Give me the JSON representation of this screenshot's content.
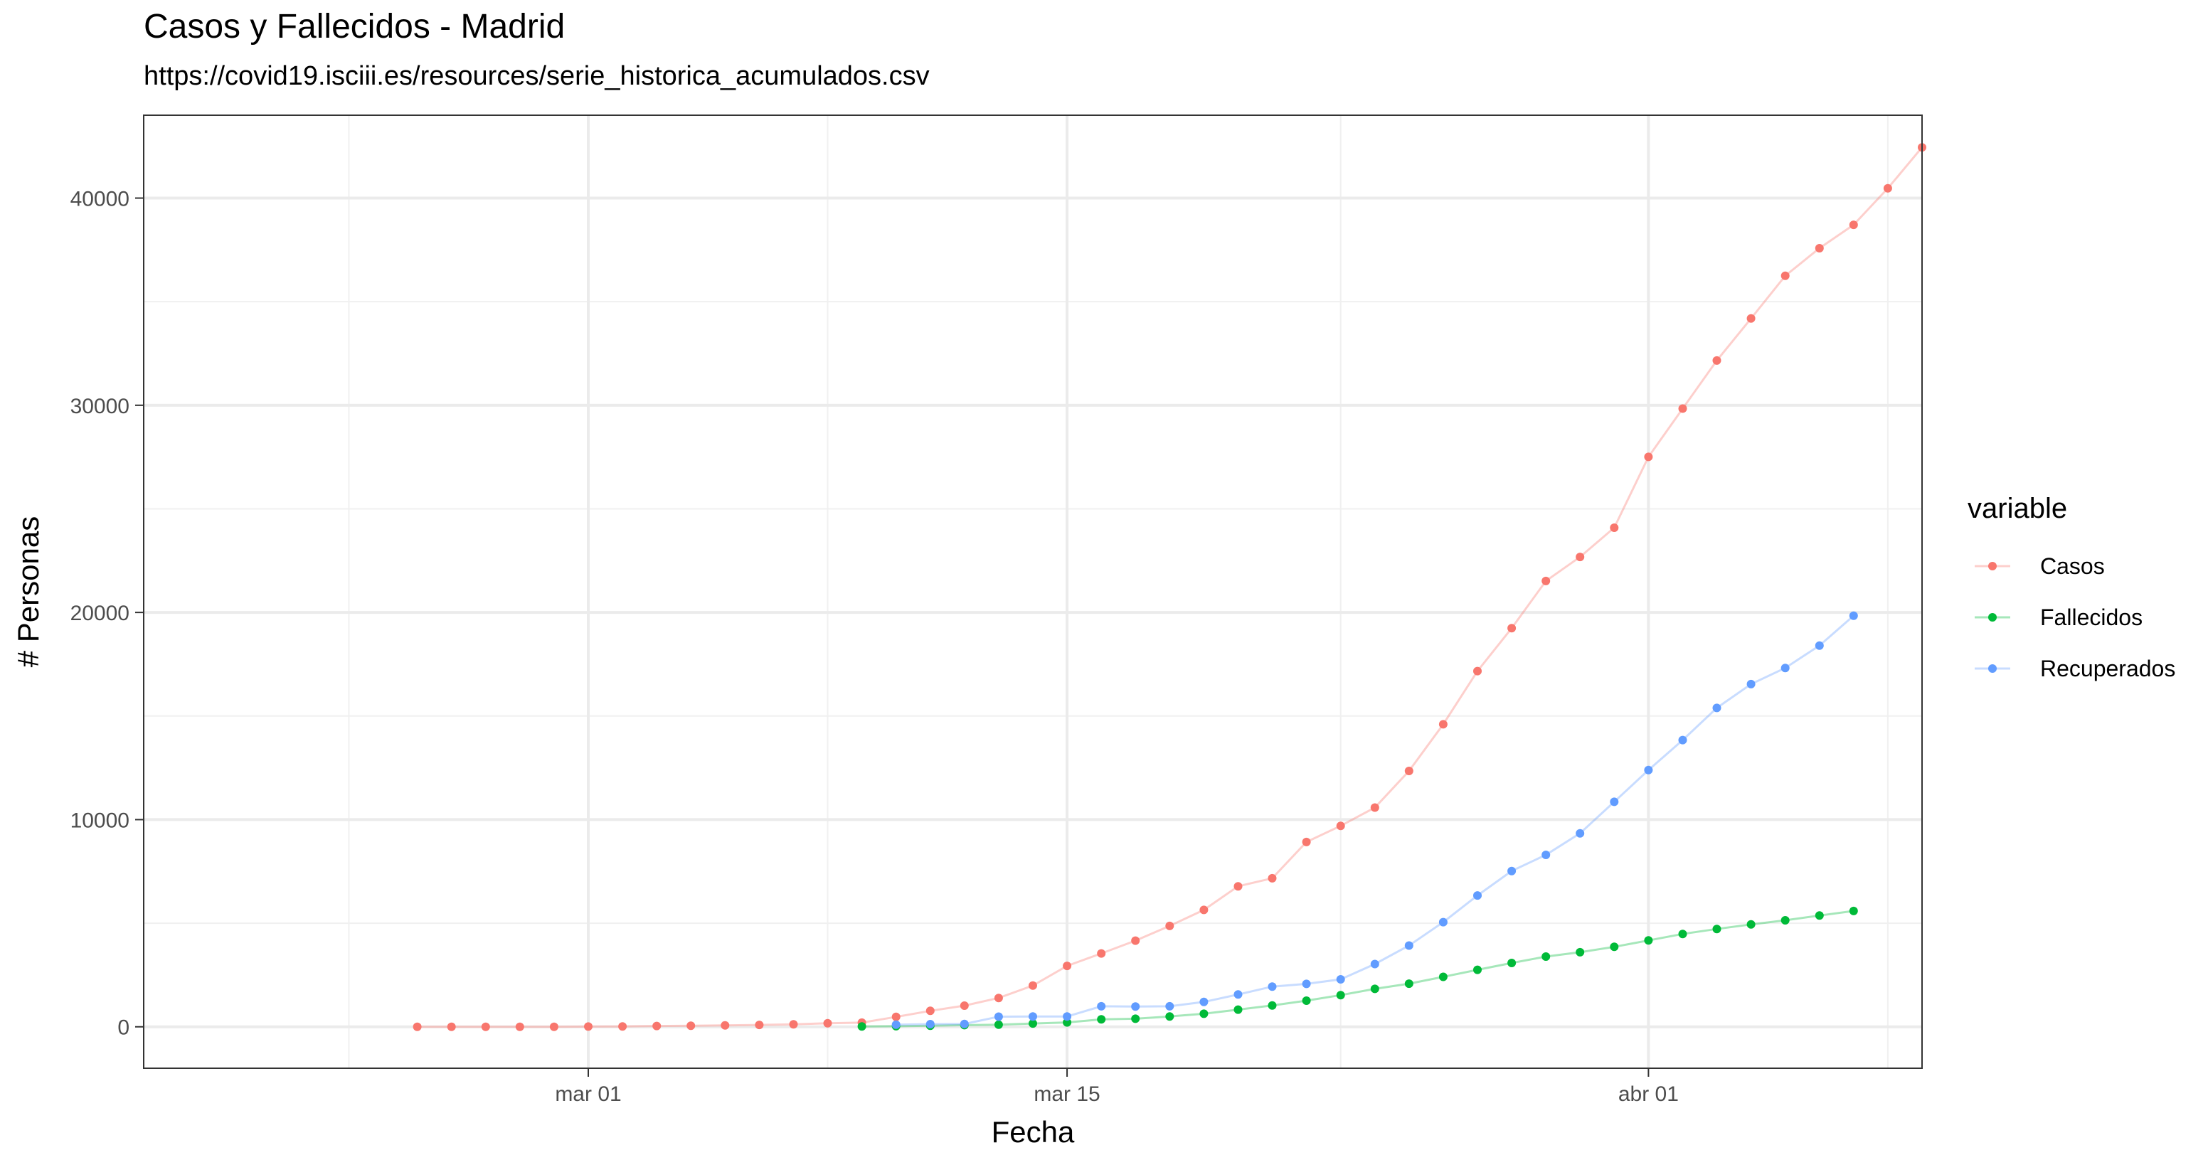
{
  "chart_data": {
    "type": "line",
    "title": "Casos y Fallecidos - Madrid",
    "subtitle": "https://covid19.isciii.es/resources/serie_historica_acumulados.csv",
    "xlabel": "Fecha",
    "ylabel": "# Personas",
    "x_axis": "date",
    "xlim": [
      "2020-02-17",
      "2020-04-09"
    ],
    "ylim": [
      -2000,
      44000
    ],
    "x_ticks": [
      {
        "date": "2020-03-01",
        "label": "mar 01"
      },
      {
        "date": "2020-03-15",
        "label": "mar 15"
      },
      {
        "date": "2020-04-01",
        "label": "abr 01"
      }
    ],
    "x_minor_ticks": [
      "2020-02-23",
      "2020-03-08",
      "2020-03-23",
      "2020-04-08"
    ],
    "y_ticks": [
      0,
      10000,
      20000,
      30000,
      40000
    ],
    "y_tick_labels": [
      "0",
      "10000",
      "20000",
      "30000",
      "40000"
    ],
    "y_minor_ticks": [
      5000,
      15000,
      25000,
      35000
    ],
    "grid": true,
    "legend": {
      "title": "variable",
      "position": "right"
    },
    "series": [
      {
        "name": "Casos",
        "color": "#F8766D",
        "start": "2020-02-25",
        "values": [
          0,
          0,
          0,
          0,
          0,
          10,
          20,
          40,
          50,
          70,
          90,
          120,
          170,
          200,
          480,
          770,
          1020,
          1390,
          1990,
          2940,
          3540,
          4160,
          4870,
          5640,
          6780,
          7170,
          8920,
          9700,
          10580,
          12350,
          14600,
          17170,
          19240,
          21520,
          22680,
          24090,
          27510,
          29840,
          32160,
          34190,
          36250,
          37580,
          38710,
          40470,
          42450
        ]
      },
      {
        "name": "Fallecidos",
        "color": "#00BA38",
        "start": "2020-03-09",
        "values": [
          20,
          30,
          50,
          80,
          100,
          160,
          210,
          360,
          390,
          500,
          630,
          830,
          1030,
          1260,
          1530,
          1830,
          2080,
          2410,
          2750,
          3080,
          3390,
          3600,
          3860,
          4170,
          4480,
          4720,
          4940,
          5140,
          5370,
          5590
        ]
      },
      {
        "name": "Recuperados",
        "color": "#619CFF",
        "start": "2020-03-10",
        "values": [
          100,
          130,
          140,
          490,
          500,
          500,
          990,
          980,
          990,
          1200,
          1560,
          1940,
          2070,
          2290,
          3030,
          3920,
          5050,
          6340,
          7520,
          8300,
          9340,
          10860,
          12390,
          13840,
          15390,
          16540,
          17320,
          18400,
          19840
        ]
      }
    ]
  }
}
